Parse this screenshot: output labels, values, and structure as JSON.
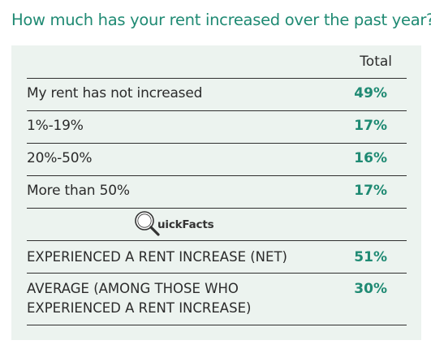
{
  "question": "How much has your rent increased over the past year?",
  "table": {
    "column_header": "Total",
    "rows": [
      {
        "label": "My rent has not increased",
        "value": "49%"
      },
      {
        "label": "1%-19%",
        "value": "17%"
      },
      {
        "label": "20%-50%",
        "value": "16%"
      },
      {
        "label": "More than 50%",
        "value": "17%"
      }
    ]
  },
  "quickfacts": {
    "label": "uickFacts",
    "rows": [
      {
        "label": "EXPERIENCED A RENT INCREASE (NET)",
        "value": "51%"
      },
      {
        "label_line1": "AVERAGE (AMONG THOSE WHO",
        "label_line2": "EXPERIENCED A RENT INCREASE)",
        "value": "30%"
      }
    ]
  },
  "colors": {
    "accent": "#1f8a73",
    "panel_background": "#ecf3ef",
    "text": "#2b2b2b"
  },
  "icons": {
    "quickfacts_logo": "magnifying-glass-icon"
  }
}
